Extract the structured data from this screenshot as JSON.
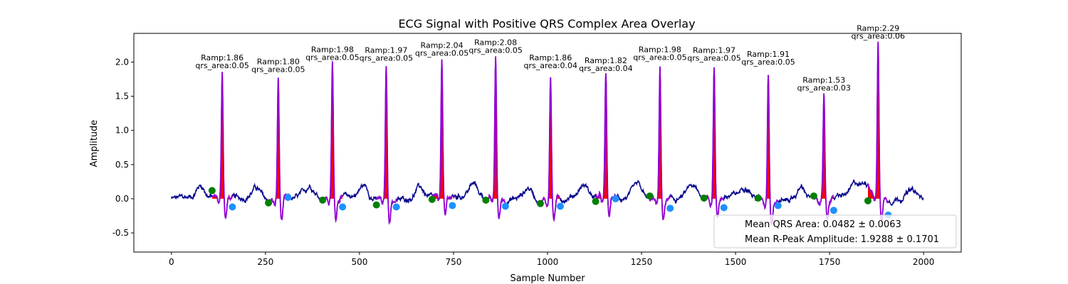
{
  "chart_data": {
    "type": "line",
    "title": "ECG Signal with Positive QRS Complex Area Overlay",
    "xlabel": "Sample Number",
    "ylabel": "Amplitude",
    "xlim": [
      -100,
      2100
    ],
    "ylim": [
      -0.78,
      2.42
    ],
    "xticks": [
      "0",
      "250",
      "500",
      "750",
      "1000",
      "1250",
      "1500",
      "1750",
      "2000"
    ],
    "yticks": [
      "-0.5",
      "0.0",
      "0.5",
      "1.0",
      "1.5",
      "2.0"
    ],
    "grid": false,
    "legend_position": "lower-right",
    "colors": {
      "signal": "#00008b",
      "qrs_segment": "#9400d3",
      "qrs_area_fill": "#ff0000",
      "q_onset_marker": "#008000",
      "s_offset_marker": "#1e90ff"
    },
    "beats": [
      {
        "onset": 108,
        "r": 135,
        "offset": 162,
        "onset_y": 0.12,
        "offset_y": -0.12,
        "r_amp": 1.86,
        "area": 0.05,
        "label_r": "Ramp:1.86",
        "label_a": "qrs_area:0.05"
      },
      {
        "onset": 258,
        "r": 284,
        "offset": 310,
        "onset_y": -0.06,
        "offset_y": 0.02,
        "r_amp": 1.8,
        "area": 0.05,
        "label_r": "Ramp:1.80",
        "label_a": "qrs_area:0.05"
      },
      {
        "onset": 402,
        "r": 428,
        "offset": 455,
        "onset_y": -0.02,
        "offset_y": -0.12,
        "r_amp": 1.98,
        "area": 0.05,
        "label_r": "Ramp:1.98",
        "label_a": "qrs_area:0.05"
      },
      {
        "onset": 545,
        "r": 571,
        "offset": 598,
        "onset_y": -0.09,
        "offset_y": -0.12,
        "r_amp": 1.97,
        "area": 0.05,
        "label_r": "Ramp:1.97",
        "label_a": "qrs_area:0.05"
      },
      {
        "onset": 693,
        "r": 719,
        "offset": 747,
        "onset_y": -0.01,
        "offset_y": -0.1,
        "r_amp": 2.04,
        "area": 0.05,
        "label_r": "Ramp:2.04",
        "label_a": "qrs_area:0.05"
      },
      {
        "onset": 836,
        "r": 862,
        "offset": 888,
        "onset_y": -0.02,
        "offset_y": -0.11,
        "r_amp": 2.08,
        "area": 0.05,
        "label_r": "Ramp:2.08",
        "label_a": "qrs_area:0.05"
      },
      {
        "onset": 981,
        "r": 1008,
        "offset": 1034,
        "onset_y": -0.07,
        "offset_y": -0.11,
        "r_amp": 1.86,
        "area": 0.04,
        "label_r": "Ramp:1.86",
        "label_a": "qrs_area:0.04"
      },
      {
        "onset": 1128,
        "r": 1155,
        "offset": 1181,
        "onset_y": -0.04,
        "offset_y": 0.0,
        "r_amp": 1.82,
        "area": 0.04,
        "label_r": "Ramp:1.82",
        "label_a": "qrs_area:0.04"
      },
      {
        "onset": 1272,
        "r": 1299,
        "offset": 1326,
        "onset_y": 0.04,
        "offset_y": -0.14,
        "r_amp": 1.98,
        "area": 0.05,
        "label_r": "Ramp:1.98",
        "label_a": "qrs_area:0.05"
      },
      {
        "onset": 1416,
        "r": 1443,
        "offset": 1469,
        "onset_y": 0.01,
        "offset_y": -0.13,
        "r_amp": 1.97,
        "area": 0.05,
        "label_r": "Ramp:1.97",
        "label_a": "qrs_area:0.05"
      },
      {
        "onset": 1560,
        "r": 1587,
        "offset": 1613,
        "onset_y": 0.01,
        "offset_y": -0.1,
        "r_amp": 1.91,
        "area": 0.05,
        "label_r": "Ramp:1.91",
        "label_a": "qrs_area:0.05"
      },
      {
        "onset": 1708,
        "r": 1735,
        "offset": 1761,
        "onset_y": 0.04,
        "offset_y": -0.17,
        "r_amp": 1.53,
        "area": 0.03,
        "label_r": "Ramp:1.53",
        "label_a": "qrs_area:0.03"
      },
      {
        "onset": 1852,
        "r": 1879,
        "offset": 1906,
        "onset_y": -0.03,
        "offset_y": -0.24,
        "r_amp": 2.29,
        "area": 0.06,
        "label_r": "Ramp:2.29",
        "label_a": "qrs_area:0.06"
      }
    ],
    "signal_range": [
      0,
      2000
    ],
    "legend": [
      "Mean QRS Area: 0.0482 ± 0.0063",
      "Mean R-Peak Amplitude: 1.9288 ± 0.1701"
    ]
  }
}
